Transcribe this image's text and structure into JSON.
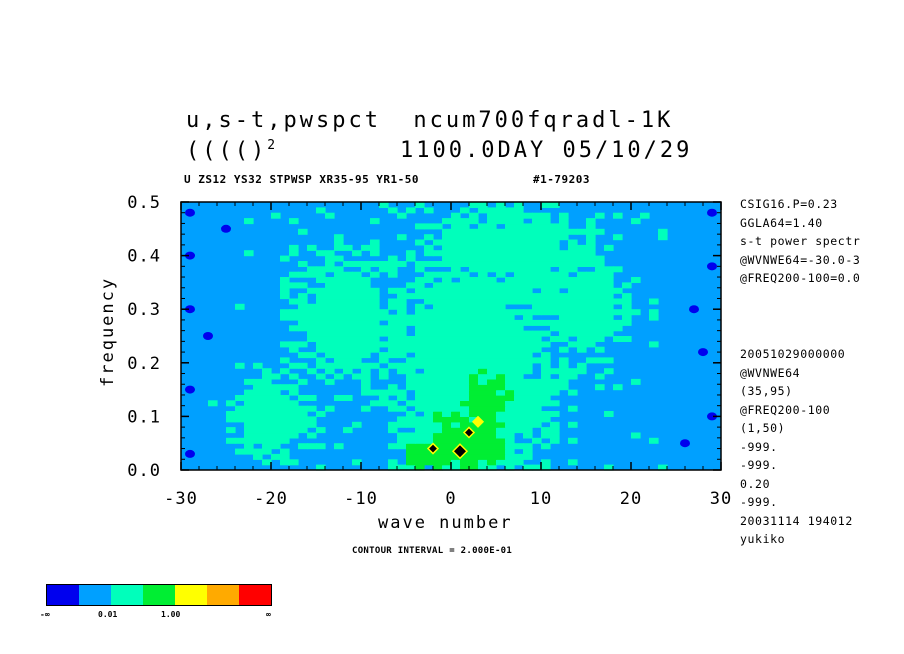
{
  "title": {
    "line1": "u,s-t,pwspct  ncum700fqradl-1K",
    "line2": "(((()",
    "line2_sup": "2",
    "line2_right": "1100.0DAY 05/10/29"
  },
  "subtitle": {
    "left": "U ZS12 YS32 STPWSP XR35-95 YR1-50",
    "right": "#1-79203"
  },
  "info_top": [
    "CSIG16.P=0.23",
    "GGLA64=1.40",
    "s-t power spectr",
    "@WVNWE64=-30.0-3",
    "@FREQ200-100=0.0"
  ],
  "info_bottom": [
    "20051029000000",
    "@WVNWE64",
    "(35,95)",
    "@FREQ200-100",
    "(1,50)",
    "-999.",
    "-999.",
    "0.20",
    "-999.",
    "20031114 194012",
    "yukiko"
  ],
  "contour_note": "CONTOUR INTERVAL = 2.000E-01",
  "colorbar": {
    "colors": [
      "#0000ee",
      "#00a0ff",
      "#00ffbb",
      "#00ee33",
      "#ffff00",
      "#ffaa00",
      "#ff0000"
    ],
    "labels": [
      "-∞",
      "0.01",
      "1.00",
      "∞"
    ]
  },
  "chart_data": {
    "type": "heatmap",
    "xlabel": "wave number",
    "ylabel": "frequency",
    "xlim": [
      -30,
      30
    ],
    "ylim": [
      0.0,
      0.5
    ],
    "xticks": [
      "-30",
      "-20",
      "-10",
      "0",
      "10",
      "20",
      "30"
    ],
    "yticks": [
      "0.0",
      "0.1",
      "0.2",
      "0.3",
      "0.4",
      "0.5"
    ],
    "levels": [
      {
        "name": "<0.01",
        "color": "#00a0ff"
      },
      {
        "name": "0.01-1.00",
        "color": "#00ffbb"
      },
      {
        "name": ">1.00",
        "color": "#00ee33"
      }
    ],
    "background_level": 0,
    "blobs": [
      {
        "x": 2,
        "y": 0.18,
        "sx": 10,
        "sy": 0.3,
        "level": 1
      },
      {
        "x": -12,
        "y": 0.28,
        "sx": 6,
        "sy": 0.12,
        "level": 1
      },
      {
        "x": 8,
        "y": 0.42,
        "sx": 7,
        "sy": 0.08,
        "level": 1
      },
      {
        "x": -20,
        "y": 0.1,
        "sx": 5,
        "sy": 0.08,
        "level": 1
      },
      {
        "x": 15,
        "y": 0.3,
        "sx": 5,
        "sy": 0.1,
        "level": 1
      },
      {
        "x": 2,
        "y": 0.06,
        "sx": 4,
        "sy": 0.05,
        "level": 2
      },
      {
        "x": 4,
        "y": 0.12,
        "sx": 2.5,
        "sy": 0.06,
        "level": 2
      },
      {
        "x": -2,
        "y": 0.03,
        "sx": 3,
        "sy": 0.03,
        "level": 2
      }
    ],
    "dark_edges": [
      {
        "x": -29,
        "y": 0.48
      },
      {
        "x": -29,
        "y": 0.4
      },
      {
        "x": -29,
        "y": 0.3
      },
      {
        "x": -29,
        "y": 0.15
      },
      {
        "x": -29,
        "y": 0.03
      },
      {
        "x": -27,
        "y": 0.25
      },
      {
        "x": 29,
        "y": 0.48
      },
      {
        "x": 29,
        "y": 0.38
      },
      {
        "x": 28,
        "y": 0.22
      },
      {
        "x": 29,
        "y": 0.1
      },
      {
        "x": 27,
        "y": 0.3
      },
      {
        "x": -25,
        "y": 0.45
      },
      {
        "x": 26,
        "y": 0.05
      }
    ],
    "peaks": [
      {
        "x": 1,
        "y": 0.035,
        "color": "#000000"
      },
      {
        "x": 2,
        "y": 0.07,
        "color": "#000000"
      },
      {
        "x": -2,
        "y": 0.04,
        "color": "#000000"
      },
      {
        "x": 3,
        "y": 0.09,
        "color": "#ffff00"
      }
    ]
  }
}
